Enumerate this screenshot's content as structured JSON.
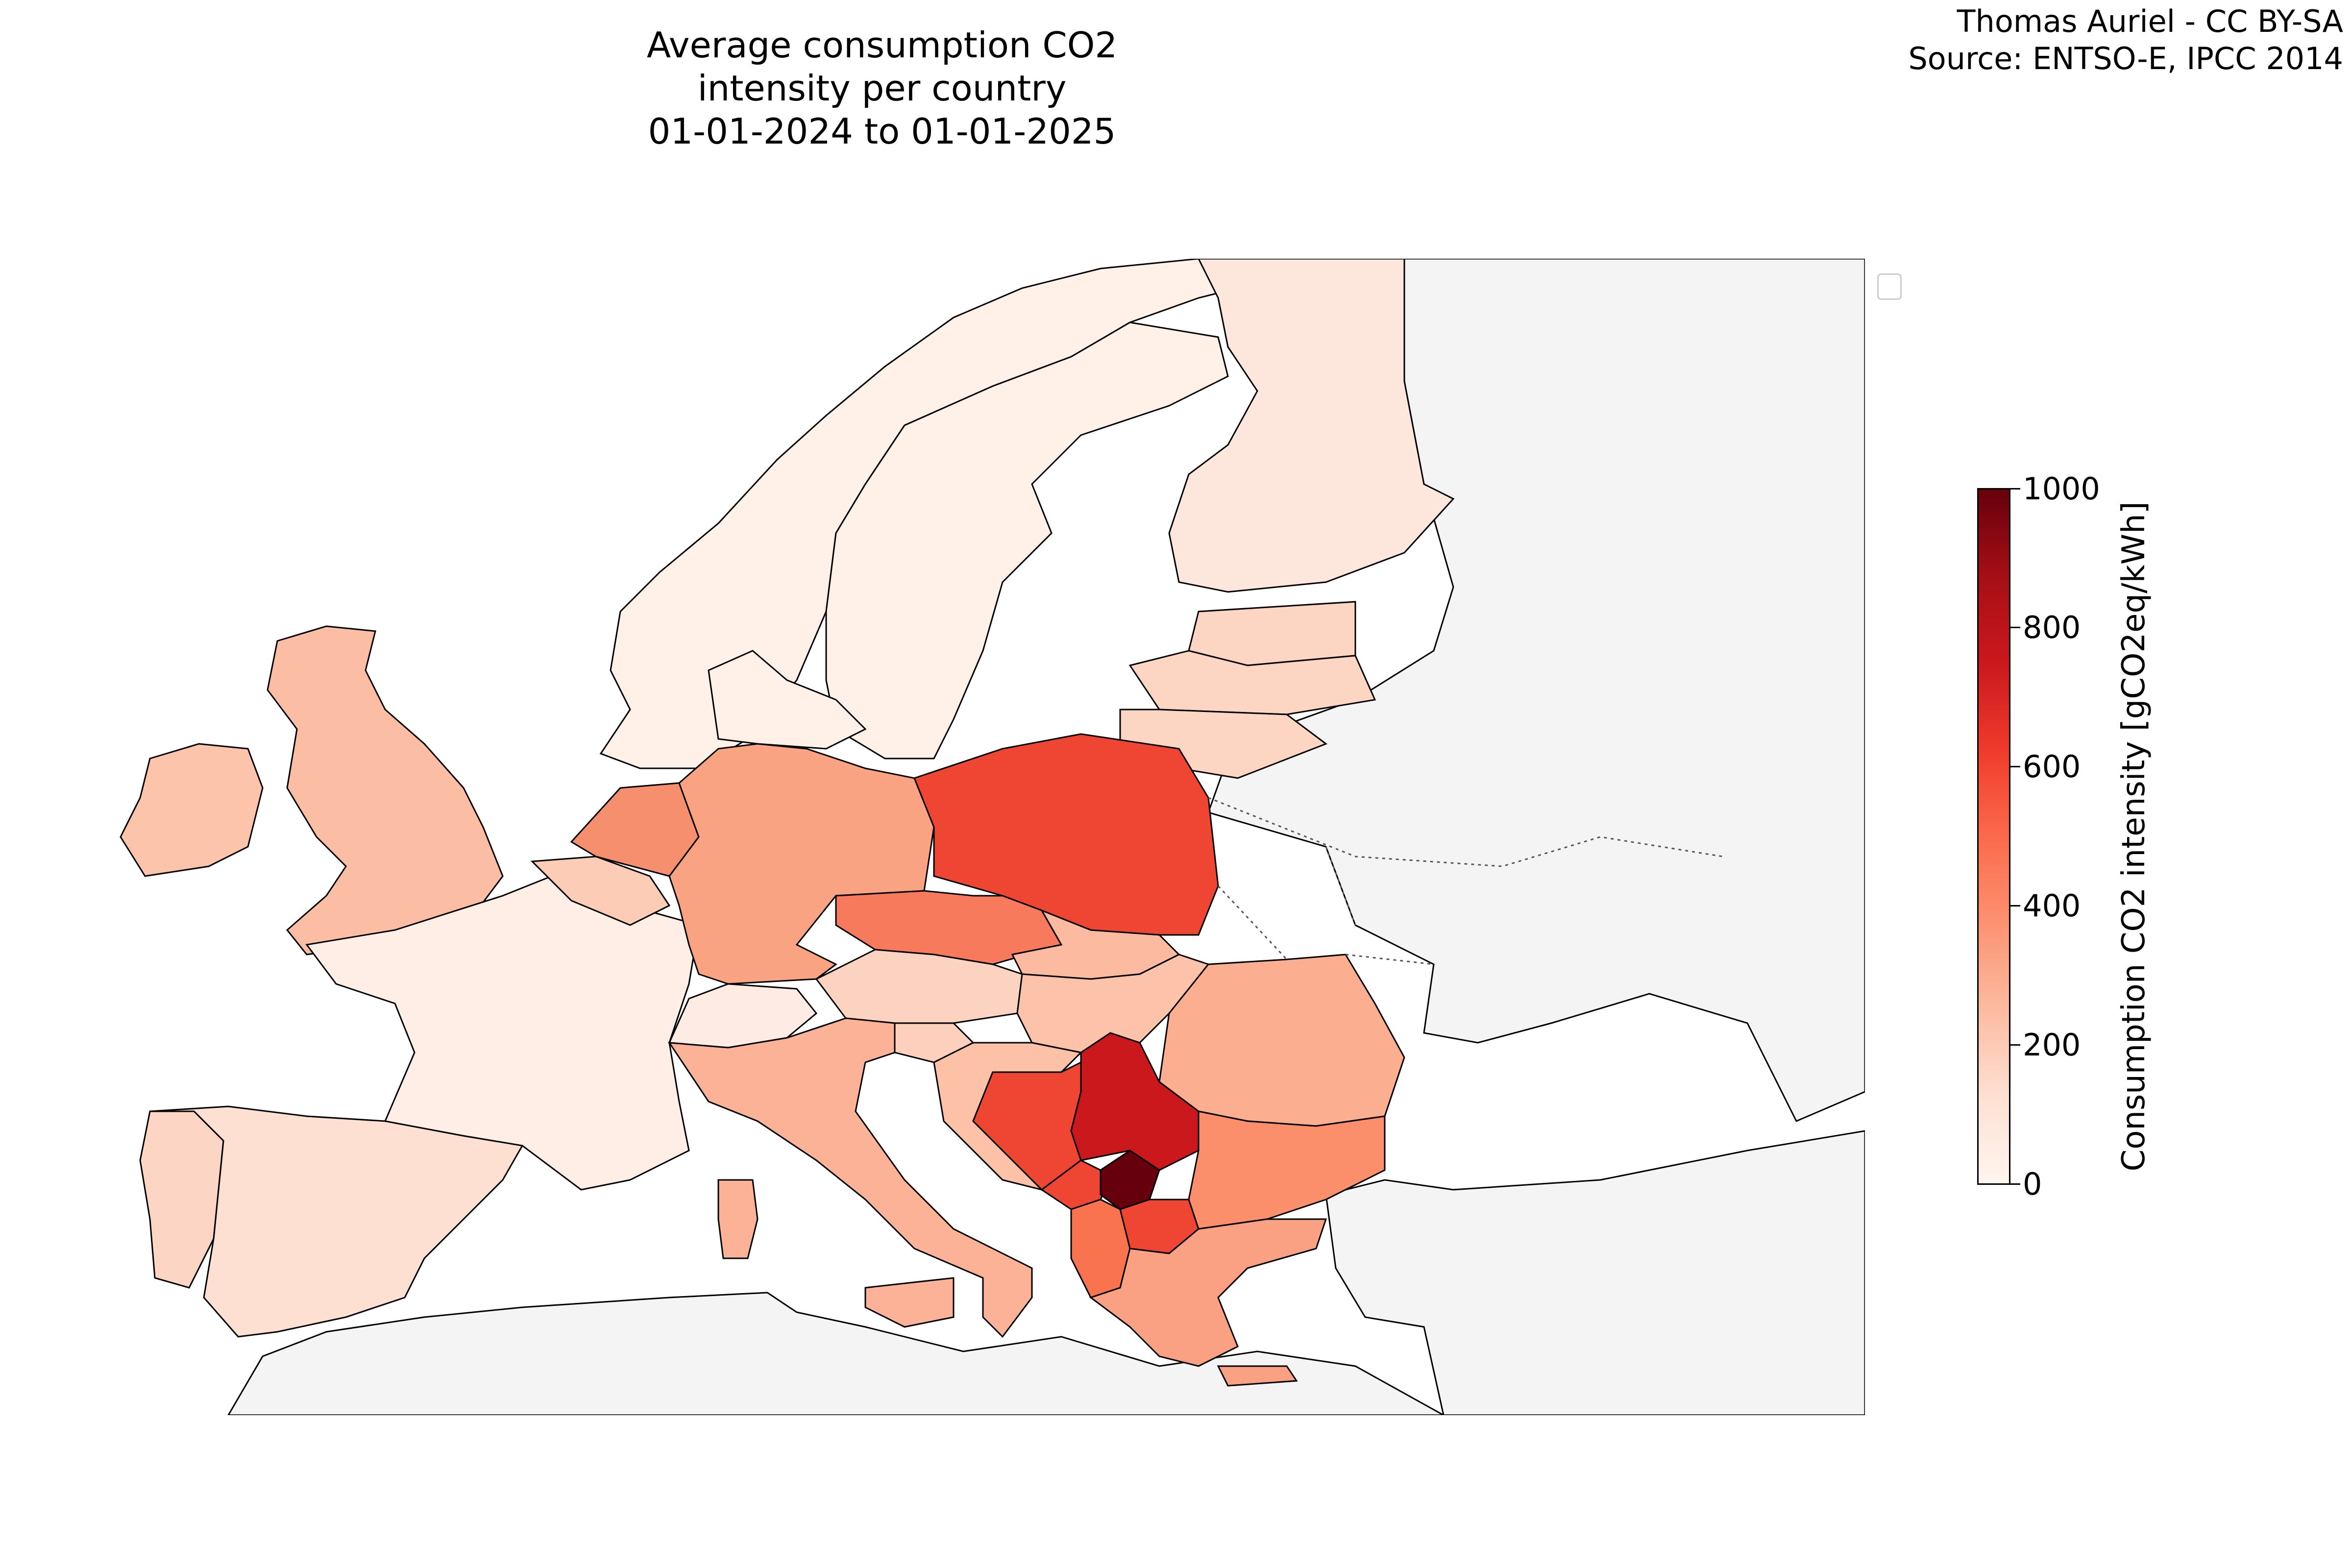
{
  "title": {
    "line1": "Average consumption CO2 intensity per country",
    "line2": "01-01-2024 to 01-01-2025"
  },
  "credits": {
    "author": "Thomas Auriel - CC BY-SA",
    "source": "Source: ENTSO-E, IPCC 2014"
  },
  "colorbar": {
    "label": "Consumption CO2 intensity [gCO2eq/kWh]",
    "ticks": [
      "0",
      "200",
      "400",
      "600",
      "800",
      "1000"
    ],
    "colormap": "Reds",
    "range": [
      0,
      1000
    ]
  },
  "colors": {
    "no_data": "#f4f4f4",
    "sea": "#ffffff",
    "border": "#000000"
  }
}
